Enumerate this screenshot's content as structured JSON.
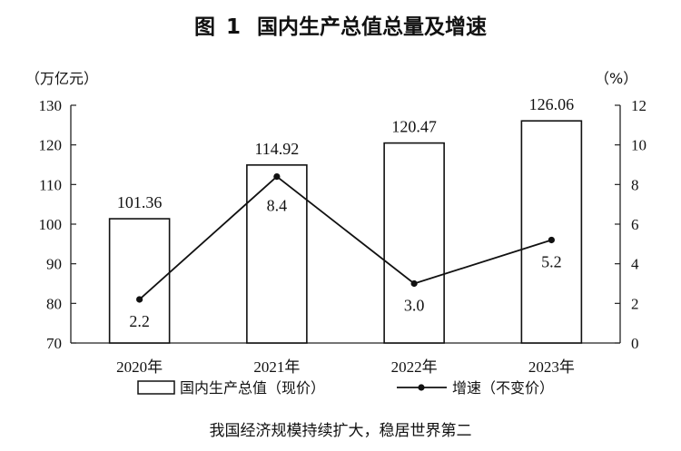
{
  "title": {
    "prefix": "图",
    "number": "1",
    "text": "国内生产总值总量及增速"
  },
  "caption": "我国经济规模持续扩大，稳居世界第二",
  "chart_data": {
    "type": "bar",
    "categories": [
      "2020年",
      "2021年",
      "2022年",
      "2023年"
    ],
    "series": [
      {
        "name": "国内生产总值（现价）",
        "type": "bar",
        "axis": "left",
        "values": [
          101.36,
          114.92,
          120.47,
          126.06
        ],
        "labels": [
          "101.36",
          "114.92",
          "120.47",
          "126.06"
        ]
      },
      {
        "name": "增速（不变价）",
        "type": "line",
        "axis": "right",
        "values": [
          2.2,
          8.4,
          3.0,
          5.2
        ],
        "labels": [
          "2.2",
          "8.4",
          "3.0",
          "5.2"
        ]
      }
    ],
    "y_left": {
      "unit": "（万亿元）",
      "ylim": [
        70,
        130
      ],
      "ticks": [
        "70",
        "80",
        "90",
        "100",
        "110",
        "120",
        "130"
      ]
    },
    "y_right": {
      "unit": "（%）",
      "ylim": [
        0,
        12
      ],
      "ticks": [
        "0",
        "2",
        "4",
        "6",
        "8",
        "10",
        "12"
      ]
    },
    "grid": false,
    "legend_position": "bottom"
  }
}
